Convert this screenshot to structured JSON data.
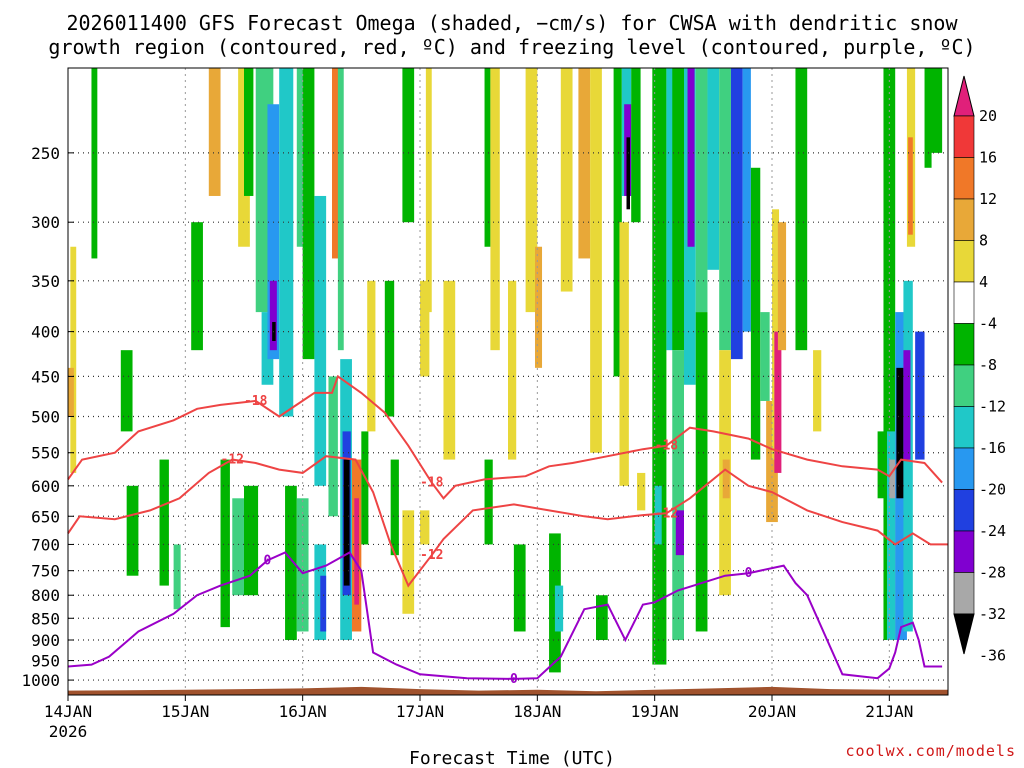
{
  "chart_data": {
    "type": "heatmap",
    "title_line1": "2026011400 GFS Forecast Omega (shaded, −cm/s) for CWSA with dendritic snow",
    "title_line2": "growth region (contoured, red, ºC) and freezing level (contoured, purple, ºC)",
    "xlabel": "Forecast Time (UTC)",
    "x_ticks": [
      {
        "label": "14JAN",
        "sub": "2026",
        "day": 0
      },
      {
        "label": "15JAN",
        "day": 1
      },
      {
        "label": "16JAN",
        "day": 2
      },
      {
        "label": "17JAN",
        "day": 3
      },
      {
        "label": "18JAN",
        "day": 4
      },
      {
        "label": "19JAN",
        "day": 5
      },
      {
        "label": "20JAN",
        "day": 6
      },
      {
        "label": "21JAN",
        "day": 7
      }
    ],
    "xlim_days": [
      0,
      7.5
    ],
    "y_ticks": [
      250,
      300,
      350,
      400,
      450,
      500,
      550,
      600,
      650,
      700,
      750,
      800,
      850,
      900,
      950,
      1000
    ],
    "ylim_hpa": [
      1040,
      200
    ],
    "colorbar_labels": [
      "20",
      "16",
      "12",
      "8",
      "4",
      "-4",
      "-8",
      "-12",
      "-16",
      "-20",
      "-24",
      "-28",
      "-32",
      "-36"
    ],
    "colorbar_colors": [
      "#e0207a",
      "#f03838",
      "#f07828",
      "#e8a838",
      "#e8d838",
      "#ffffff",
      "#00b400",
      "#40d080",
      "#20c8c8",
      "#2898f0",
      "#2040e0",
      "#8000d0",
      "#a8a8a8",
      "#000000"
    ],
    "contours": {
      "dgz_top_neg18": {
        "label": "-18",
        "color": "#ee4444",
        "points": [
          [
            0,
            590
          ],
          [
            0.12,
            560
          ],
          [
            0.4,
            550
          ],
          [
            0.6,
            520
          ],
          [
            0.9,
            505
          ],
          [
            1.1,
            490
          ],
          [
            1.3,
            485
          ],
          [
            1.6,
            480
          ],
          [
            1.8,
            500
          ],
          [
            2.1,
            470
          ],
          [
            2.25,
            470
          ],
          [
            2.3,
            450
          ],
          [
            2.5,
            470
          ],
          [
            2.7,
            495
          ],
          [
            2.9,
            540
          ],
          [
            3.1,
            595
          ],
          [
            3.2,
            620
          ],
          [
            3.3,
            600
          ],
          [
            3.55,
            590
          ],
          [
            3.9,
            585
          ],
          [
            4.1,
            570
          ],
          [
            4.3,
            565
          ],
          [
            4.6,
            555
          ],
          [
            4.9,
            545
          ],
          [
            5.1,
            540
          ],
          [
            5.3,
            515
          ],
          [
            5.5,
            520
          ],
          [
            5.8,
            530
          ],
          [
            6.0,
            545
          ],
          [
            6.3,
            560
          ],
          [
            6.6,
            570
          ],
          [
            6.9,
            575
          ],
          [
            7.0,
            585
          ],
          [
            7.1,
            560
          ],
          [
            7.3,
            565
          ],
          [
            7.45,
            595
          ]
        ]
      },
      "dgz_bottom_neg12": {
        "label": "-12",
        "color": "#ee4444",
        "points": [
          [
            0,
            680
          ],
          [
            0.1,
            650
          ],
          [
            0.4,
            655
          ],
          [
            0.7,
            640
          ],
          [
            0.95,
            620
          ],
          [
            1.2,
            580
          ],
          [
            1.4,
            560
          ],
          [
            1.6,
            565
          ],
          [
            1.8,
            575
          ],
          [
            2.0,
            580
          ],
          [
            2.2,
            555
          ],
          [
            2.45,
            560
          ],
          [
            2.6,
            610
          ],
          [
            2.75,
            700
          ],
          [
            2.9,
            780
          ],
          [
            3.1,
            720
          ],
          [
            3.2,
            690
          ],
          [
            3.45,
            640
          ],
          [
            3.8,
            630
          ],
          [
            4.1,
            640
          ],
          [
            4.4,
            650
          ],
          [
            4.6,
            655
          ],
          [
            4.9,
            648
          ],
          [
            5.1,
            645
          ],
          [
            5.3,
            620
          ],
          [
            5.6,
            575
          ],
          [
            5.8,
            600
          ],
          [
            6.0,
            610
          ],
          [
            6.3,
            640
          ],
          [
            6.6,
            660
          ],
          [
            6.9,
            675
          ],
          [
            7.05,
            700
          ],
          [
            7.2,
            680
          ],
          [
            7.35,
            700
          ],
          [
            7.5,
            700
          ]
        ]
      },
      "freezing_level_0": {
        "label": "0",
        "color": "#9a00c8",
        "points": [
          [
            0,
            965
          ],
          [
            0.2,
            960
          ],
          [
            0.35,
            940
          ],
          [
            0.6,
            880
          ],
          [
            0.9,
            840
          ],
          [
            1.1,
            800
          ],
          [
            1.3,
            780
          ],
          [
            1.55,
            760
          ],
          [
            1.7,
            730
          ],
          [
            1.85,
            715
          ],
          [
            2.0,
            755
          ],
          [
            2.2,
            740
          ],
          [
            2.4,
            715
          ],
          [
            2.5,
            750
          ],
          [
            2.6,
            930
          ],
          [
            2.8,
            960
          ],
          [
            3.0,
            985
          ],
          [
            3.2,
            990
          ],
          [
            3.4,
            995
          ],
          [
            3.8,
            997
          ],
          [
            4.0,
            995
          ],
          [
            4.2,
            940
          ],
          [
            4.4,
            830
          ],
          [
            4.6,
            820
          ],
          [
            4.75,
            900
          ],
          [
            4.9,
            820
          ],
          [
            5.0,
            815
          ],
          [
            5.2,
            790
          ],
          [
            5.4,
            775
          ],
          [
            5.6,
            760
          ],
          [
            5.8,
            755
          ],
          [
            6.0,
            745
          ],
          [
            6.1,
            740
          ],
          [
            6.2,
            775
          ],
          [
            6.3,
            800
          ],
          [
            6.6,
            985
          ],
          [
            6.9,
            995
          ],
          [
            7.0,
            970
          ],
          [
            7.05,
            930
          ],
          [
            7.1,
            870
          ],
          [
            7.2,
            860
          ],
          [
            7.25,
            900
          ],
          [
            7.3,
            965
          ],
          [
            7.45,
            965
          ]
        ]
      }
    },
    "shading_cells": [
      {
        "d0": 0.02,
        "d1": 0.07,
        "p0": 320,
        "p1": 580,
        "v": 4
      },
      {
        "d0": 0.0,
        "d1": 0.05,
        "p0": 440,
        "p1": 500,
        "v": 8
      },
      {
        "d0": 0.2,
        "d1": 0.25,
        "p0": 200,
        "p1": 330,
        "v": -8
      },
      {
        "d0": 0.45,
        "d1": 0.55,
        "p0": 420,
        "p1": 520,
        "v": -8
      },
      {
        "d0": 0.5,
        "d1": 0.6,
        "p0": 600,
        "p1": 760,
        "v": -8
      },
      {
        "d0": 0.78,
        "d1": 0.86,
        "p0": 560,
        "p1": 780,
        "v": -8
      },
      {
        "d0": 0.9,
        "d1": 0.96,
        "p0": 700,
        "p1": 830,
        "v": -12
      },
      {
        "d0": 1.05,
        "d1": 1.15,
        "p0": 300,
        "p1": 420,
        "v": -8
      },
      {
        "d0": 1.2,
        "d1": 1.3,
        "p0": 200,
        "p1": 280,
        "v": 8
      },
      {
        "d0": 1.3,
        "d1": 1.38,
        "p0": 560,
        "p1": 870,
        "v": -8
      },
      {
        "d0": 1.4,
        "d1": 1.5,
        "p0": 620,
        "p1": 800,
        "v": -12
      },
      {
        "d0": 1.45,
        "d1": 1.55,
        "p0": 200,
        "p1": 320,
        "v": 4
      },
      {
        "d0": 1.5,
        "d1": 1.62,
        "p0": 600,
        "p1": 800,
        "v": -8
      },
      {
        "d0": 1.5,
        "d1": 1.58,
        "p0": 200,
        "p1": 280,
        "v": -8
      },
      {
        "d0": 1.6,
        "d1": 1.75,
        "p0": 200,
        "p1": 380,
        "v": -12
      },
      {
        "d0": 1.65,
        "d1": 1.75,
        "p0": 380,
        "p1": 460,
        "v": -16
      },
      {
        "d0": 1.7,
        "d1": 1.8,
        "p0": 220,
        "p1": 430,
        "v": -20
      },
      {
        "d0": 1.72,
        "d1": 1.78,
        "p0": 350,
        "p1": 420,
        "v": -28
      },
      {
        "d0": 1.74,
        "d1": 1.77,
        "p0": 390,
        "p1": 410,
        "v": -36
      },
      {
        "d0": 1.8,
        "d1": 1.92,
        "p0": 200,
        "p1": 500,
        "v": -16
      },
      {
        "d0": 1.85,
        "d1": 1.95,
        "p0": 600,
        "p1": 900,
        "v": -8
      },
      {
        "d0": 1.95,
        "d1": 2.05,
        "p0": 200,
        "p1": 320,
        "v": -12
      },
      {
        "d0": 1.95,
        "d1": 2.05,
        "p0": 620,
        "p1": 880,
        "v": -12
      },
      {
        "d0": 2.0,
        "d1": 2.1,
        "p0": 200,
        "p1": 430,
        "v": -8
      },
      {
        "d0": 2.1,
        "d1": 2.2,
        "p0": 280,
        "p1": 600,
        "v": -16
      },
      {
        "d0": 2.1,
        "d1": 2.2,
        "p0": 700,
        "p1": 900,
        "v": -16
      },
      {
        "d0": 2.15,
        "d1": 2.2,
        "p0": 760,
        "p1": 880,
        "v": -24
      },
      {
        "d0": 2.25,
        "d1": 2.32,
        "p0": 200,
        "p1": 330,
        "v": 12
      },
      {
        "d0": 2.22,
        "d1": 2.3,
        "p0": 450,
        "p1": 650,
        "v": -12
      },
      {
        "d0": 2.3,
        "d1": 2.35,
        "p0": 200,
        "p1": 420,
        "v": -12
      },
      {
        "d0": 2.32,
        "d1": 2.42,
        "p0": 430,
        "p1": 900,
        "v": -16
      },
      {
        "d0": 2.34,
        "d1": 2.41,
        "p0": 520,
        "p1": 800,
        "v": -24
      },
      {
        "d0": 2.35,
        "d1": 2.4,
        "p0": 560,
        "p1": 780,
        "v": -36
      },
      {
        "d0": 2.42,
        "d1": 2.5,
        "p0": 560,
        "p1": 880,
        "v": 12
      },
      {
        "d0": 2.44,
        "d1": 2.48,
        "p0": 620,
        "p1": 820,
        "v": 20
      },
      {
        "d0": 2.5,
        "d1": 2.56,
        "p0": 520,
        "p1": 700,
        "v": -8
      },
      {
        "d0": 2.55,
        "d1": 2.62,
        "p0": 350,
        "p1": 520,
        "v": 4
      },
      {
        "d0": 2.7,
        "d1": 2.78,
        "p0": 350,
        "p1": 500,
        "v": -8
      },
      {
        "d0": 2.75,
        "d1": 2.82,
        "p0": 560,
        "p1": 720,
        "v": -8
      },
      {
        "d0": 2.85,
        "d1": 2.95,
        "p0": 200,
        "p1": 300,
        "v": -8
      },
      {
        "d0": 2.85,
        "d1": 2.95,
        "p0": 640,
        "p1": 840,
        "v": 4
      },
      {
        "d0": 3.0,
        "d1": 3.08,
        "p0": 350,
        "p1": 450,
        "v": 4
      },
      {
        "d0": 3.0,
        "d1": 3.08,
        "p0": 640,
        "p1": 700,
        "v": 4
      },
      {
        "d0": 3.05,
        "d1": 3.1,
        "p0": 200,
        "p1": 380,
        "v": 4
      },
      {
        "d0": 3.2,
        "d1": 3.3,
        "p0": 350,
        "p1": 560,
        "v": 4
      },
      {
        "d0": 3.55,
        "d1": 3.6,
        "p0": 200,
        "p1": 320,
        "v": -8
      },
      {
        "d0": 3.55,
        "d1": 3.62,
        "p0": 560,
        "p1": 700,
        "v": -8
      },
      {
        "d0": 3.6,
        "d1": 3.68,
        "p0": 200,
        "p1": 420,
        "v": 4
      },
      {
        "d0": 3.75,
        "d1": 3.82,
        "p0": 350,
        "p1": 560,
        "v": 4
      },
      {
        "d0": 3.8,
        "d1": 3.9,
        "p0": 700,
        "p1": 880,
        "v": -8
      },
      {
        "d0": 3.9,
        "d1": 4.0,
        "p0": 200,
        "p1": 380,
        "v": 4
      },
      {
        "d0": 3.98,
        "d1": 4.04,
        "p0": 320,
        "p1": 440,
        "v": 8
      },
      {
        "d0": 4.1,
        "d1": 4.2,
        "p0": 680,
        "p1": 980,
        "v": -8
      },
      {
        "d0": 4.15,
        "d1": 4.22,
        "p0": 780,
        "p1": 880,
        "v": -16
      },
      {
        "d0": 4.2,
        "d1": 4.3,
        "p0": 200,
        "p1": 360,
        "v": 4
      },
      {
        "d0": 4.35,
        "d1": 4.45,
        "p0": 200,
        "p1": 330,
        "v": 8
      },
      {
        "d0": 4.45,
        "d1": 4.55,
        "p0": 200,
        "p1": 550,
        "v": 4
      },
      {
        "d0": 4.5,
        "d1": 4.6,
        "p0": 800,
        "p1": 900,
        "v": -8
      },
      {
        "d0": 4.65,
        "d1": 4.72,
        "p0": 200,
        "p1": 450,
        "v": -8
      },
      {
        "d0": 4.7,
        "d1": 4.78,
        "p0": 300,
        "p1": 600,
        "v": 4
      },
      {
        "d0": 4.72,
        "d1": 4.8,
        "p0": 200,
        "p1": 280,
        "v": -16
      },
      {
        "d0": 4.74,
        "d1": 4.8,
        "p0": 220,
        "p1": 280,
        "v": -28
      },
      {
        "d0": 4.76,
        "d1": 4.79,
        "p0": 240,
        "p1": 290,
        "v": -36
      },
      {
        "d0": 4.8,
        "d1": 4.88,
        "p0": 200,
        "p1": 300,
        "v": -8
      },
      {
        "d0": 4.85,
        "d1": 4.92,
        "p0": 580,
        "p1": 640,
        "v": 4
      },
      {
        "d0": 4.98,
        "d1": 5.1,
        "p0": 200,
        "p1": 960,
        "v": -8
      },
      {
        "d0": 5.0,
        "d1": 5.06,
        "p0": 600,
        "p1": 700,
        "v": -16
      },
      {
        "d0": 5.1,
        "d1": 5.18,
        "p0": 200,
        "p1": 420,
        "v": -16
      },
      {
        "d0": 5.15,
        "d1": 5.25,
        "p0": 200,
        "p1": 420,
        "v": -8
      },
      {
        "d0": 5.15,
        "d1": 5.25,
        "p0": 420,
        "p1": 900,
        "v": -12
      },
      {
        "d0": 5.18,
        "d1": 5.25,
        "p0": 640,
        "p1": 720,
        "v": -28
      },
      {
        "d0": 5.25,
        "d1": 5.35,
        "p0": 200,
        "p1": 460,
        "v": -16
      },
      {
        "d0": 5.28,
        "d1": 5.34,
        "p0": 200,
        "p1": 320,
        "v": -28
      },
      {
        "d0": 5.35,
        "d1": 5.45,
        "p0": 200,
        "p1": 380,
        "v": -12
      },
      {
        "d0": 5.35,
        "d1": 5.45,
        "p0": 380,
        "p1": 880,
        "v": -8
      },
      {
        "d0": 5.45,
        "d1": 5.55,
        "p0": 200,
        "p1": 340,
        "v": -16
      },
      {
        "d0": 5.55,
        "d1": 5.65,
        "p0": 200,
        "p1": 420,
        "v": -12
      },
      {
        "d0": 5.55,
        "d1": 5.65,
        "p0": 420,
        "p1": 800,
        "v": 4
      },
      {
        "d0": 5.58,
        "d1": 5.64,
        "p0": 560,
        "p1": 620,
        "v": 8
      },
      {
        "d0": 5.65,
        "d1": 5.75,
        "p0": 200,
        "p1": 430,
        "v": -24
      },
      {
        "d0": 5.75,
        "d1": 5.82,
        "p0": 200,
        "p1": 400,
        "v": -20
      },
      {
        "d0": 5.82,
        "d1": 5.9,
        "p0": 260,
        "p1": 560,
        "v": -8
      },
      {
        "d0": 5.9,
        "d1": 5.98,
        "p0": 380,
        "p1": 480,
        "v": -12
      },
      {
        "d0": 5.95,
        "d1": 6.05,
        "p0": 480,
        "p1": 660,
        "v": 8
      },
      {
        "d0": 6.0,
        "d1": 6.06,
        "p0": 290,
        "p1": 560,
        "v": 4
      },
      {
        "d0": 6.02,
        "d1": 6.08,
        "p0": 400,
        "p1": 580,
        "v": 20
      },
      {
        "d0": 6.05,
        "d1": 6.12,
        "p0": 300,
        "p1": 420,
        "v": 8
      },
      {
        "d0": 6.2,
        "d1": 6.3,
        "p0": 200,
        "p1": 420,
        "v": -8
      },
      {
        "d0": 6.35,
        "d1": 6.42,
        "p0": 420,
        "p1": 520,
        "v": 4
      },
      {
        "d0": 6.9,
        "d1": 6.96,
        "p0": 520,
        "p1": 620,
        "v": -8
      },
      {
        "d0": 6.95,
        "d1": 7.05,
        "p0": 200,
        "p1": 900,
        "v": -8
      },
      {
        "d0": 6.98,
        "d1": 7.05,
        "p0": 520,
        "p1": 900,
        "v": -16
      },
      {
        "d0": 7.0,
        "d1": 7.06,
        "p0": 560,
        "p1": 620,
        "v": -32
      },
      {
        "d0": 7.05,
        "d1": 7.15,
        "p0": 380,
        "p1": 900,
        "v": -20
      },
      {
        "d0": 7.06,
        "d1": 7.12,
        "p0": 440,
        "p1": 620,
        "v": -36
      },
      {
        "d0": 7.12,
        "d1": 7.2,
        "p0": 350,
        "p1": 880,
        "v": -16
      },
      {
        "d0": 7.12,
        "d1": 7.18,
        "p0": 420,
        "p1": 560,
        "v": -28
      },
      {
        "d0": 7.15,
        "d1": 7.22,
        "p0": 200,
        "p1": 320,
        "v": 4
      },
      {
        "d0": 7.16,
        "d1": 7.2,
        "p0": 240,
        "p1": 310,
        "v": 12
      },
      {
        "d0": 7.22,
        "d1": 7.3,
        "p0": 400,
        "p1": 560,
        "v": -24
      },
      {
        "d0": 7.3,
        "d1": 7.36,
        "p0": 200,
        "p1": 260,
        "v": -8
      },
      {
        "d0": 7.35,
        "d1": 7.45,
        "p0": 200,
        "p1": 250,
        "v": -8
      }
    ]
  },
  "credit": "coolwx.com/models"
}
